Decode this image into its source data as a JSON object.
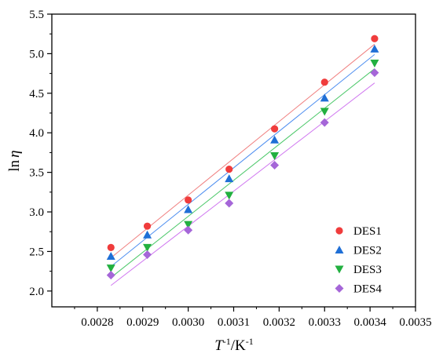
{
  "chart_data": {
    "type": "scatter",
    "xlabel": "T-1/K-1",
    "ylabel": "lnη",
    "xlim": [
      0.0027,
      0.0035
    ],
    "ylim": [
      1.8,
      5.5
    ],
    "x_ticks": [
      "0.0028",
      "0.0029",
      "0.0030",
      "0.0031",
      "0.0032",
      "0.0033",
      "0.0034",
      "0.0035"
    ],
    "y_ticks": [
      "2.0",
      "2.5",
      "3.0",
      "3.5",
      "4.0",
      "4.5",
      "5.0",
      "5.5"
    ],
    "x_tick_values": [
      0.0028,
      0.0029,
      0.003,
      0.0031,
      0.0032,
      0.0033,
      0.0034,
      0.0035
    ],
    "y_tick_values": [
      2.0,
      2.5,
      3.0,
      3.5,
      4.0,
      4.5,
      5.0,
      5.5
    ],
    "grid": false,
    "legend": {
      "position": "bottom-right"
    },
    "x": [
      0.00283,
      0.00291,
      0.003,
      0.00309,
      0.00319,
      0.0033,
      0.00341
    ],
    "series": [
      {
        "name": "DES1",
        "marker": "circle",
        "color": "#f03c3c",
        "line_color": "#f08080",
        "values": [
          2.55,
          2.82,
          3.15,
          3.54,
          4.05,
          4.64,
          5.19
        ],
        "fit": [
          2.42,
          5.12
        ]
      },
      {
        "name": "DES2",
        "marker": "triangle-up",
        "color": "#1f6fd6",
        "line_color": "#4f8ff0",
        "values": [
          2.44,
          2.71,
          3.03,
          3.42,
          3.91,
          4.44,
          5.06
        ],
        "fit": [
          2.31,
          4.99
        ]
      },
      {
        "name": "DES3",
        "marker": "triangle-down",
        "color": "#22b040",
        "line_color": "#4cc86a",
        "values": [
          2.29,
          2.55,
          2.84,
          3.21,
          3.71,
          4.27,
          4.88
        ],
        "fit": [
          2.17,
          4.81
        ]
      },
      {
        "name": "DES4",
        "marker": "diamond",
        "color": "#a566d8",
        "line_color": "#d078f0",
        "values": [
          2.2,
          2.46,
          2.77,
          3.11,
          3.59,
          4.13,
          4.76
        ],
        "fit": [
          2.07,
          4.63
        ]
      }
    ]
  }
}
